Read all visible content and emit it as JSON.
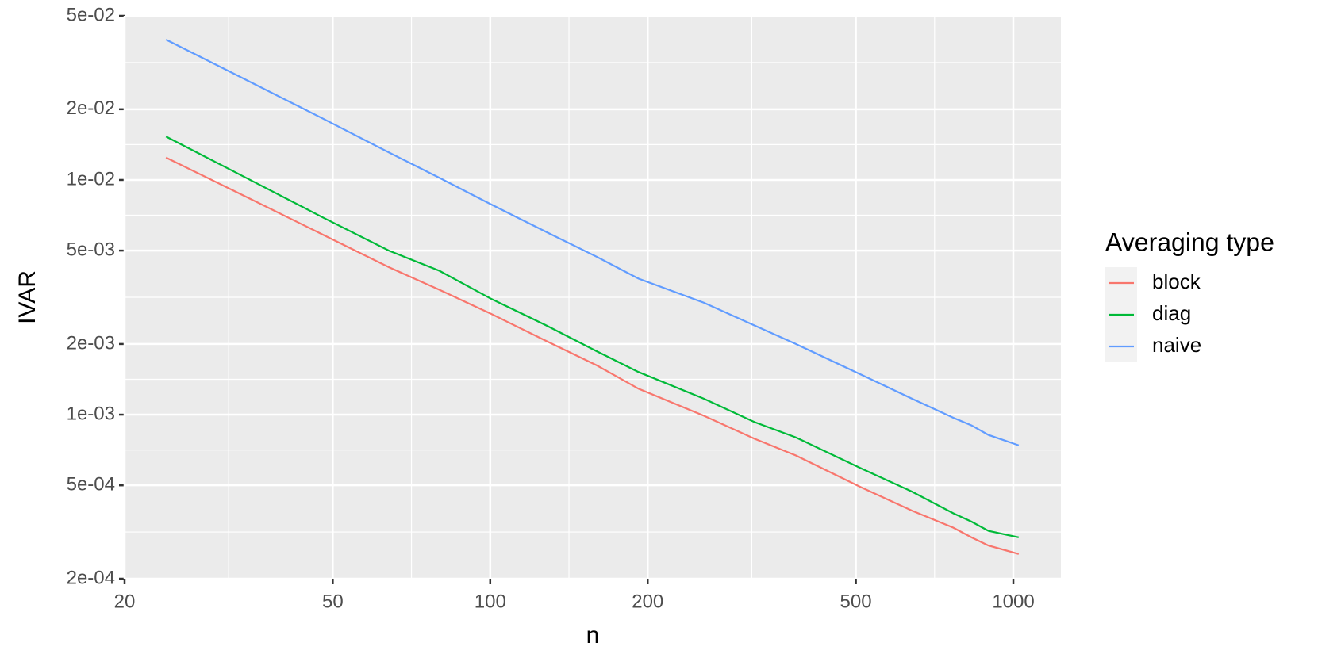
{
  "chart_data": {
    "type": "line",
    "x_label": "n",
    "y_label": "IVAR",
    "legend_title": "Averaging type",
    "legend_position": "right",
    "x_scale": "log",
    "y_scale": "log",
    "grid": true,
    "panel_color": "#ebebeb",
    "x": [
      24,
      32,
      48,
      64,
      80,
      100,
      128,
      160,
      192,
      256,
      320,
      384,
      512,
      640,
      768,
      832,
      896,
      1024
    ],
    "series": [
      {
        "name": "block",
        "color": "#f8766d",
        "values": [
          0.01245,
          0.0091,
          0.00583,
          0.00425,
          0.0034,
          0.0027,
          0.00206,
          0.00162,
          0.00129,
          0.00099,
          0.00079,
          0.00067,
          0.00049,
          0.00039,
          0.00033,
          0.0003,
          0.000277,
          0.000255
        ]
      },
      {
        "name": "diag",
        "color": "#00ba38",
        "values": [
          0.0153,
          0.011,
          0.0069,
          0.005,
          0.0041,
          0.00313,
          0.0024,
          0.00186,
          0.00152,
          0.00117,
          0.00093,
          0.0008,
          0.00059,
          0.00047,
          0.00038,
          0.00035,
          0.00032,
          0.0003
        ]
      },
      {
        "name": "naive",
        "color": "#619cff",
        "values": [
          0.0396,
          0.0287,
          0.0182,
          0.0131,
          0.0102,
          0.0079,
          0.006,
          0.0047,
          0.0038,
          0.003,
          0.0024,
          0.002,
          0.00148,
          0.00117,
          0.00097,
          0.0009,
          0.00082,
          0.00074
        ]
      }
    ],
    "xlim": [
      20,
      1233
    ],
    "ylim": [
      0.0002,
      0.05
    ],
    "xticks": [
      20,
      50,
      100,
      200,
      500,
      1000
    ],
    "yticks": [
      {
        "value": 0.0002,
        "label": "2e-04"
      },
      {
        "value": 0.0005,
        "label": "5e-04"
      },
      {
        "value": 0.001,
        "label": "1e-03"
      },
      {
        "value": 0.002,
        "label": "2e-03"
      },
      {
        "value": 0.005,
        "label": "5e-03"
      },
      {
        "value": 0.01,
        "label": "1e-02"
      },
      {
        "value": 0.02,
        "label": "2e-02"
      },
      {
        "value": 0.05,
        "label": "5e-02"
      }
    ]
  }
}
